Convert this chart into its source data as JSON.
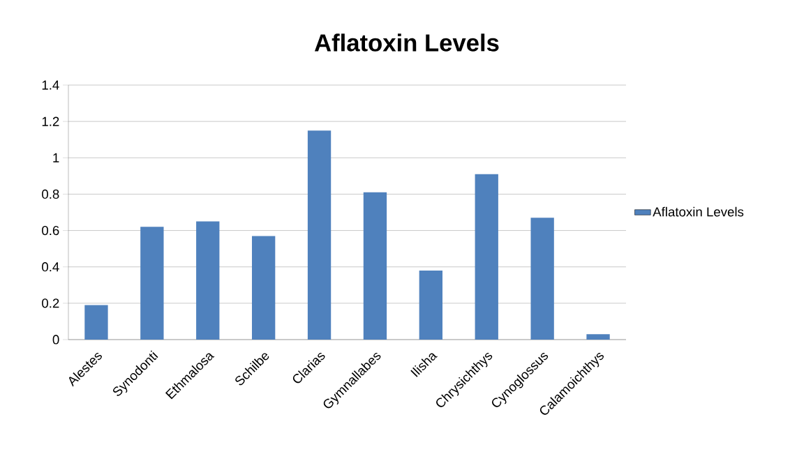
{
  "chart_data": {
    "type": "bar",
    "title": "Aflatoxin Levels",
    "categories": [
      "Alestes",
      "Synodonti",
      "Ethmalosa",
      "Schilbe",
      "Clarias",
      "Gymnallabes",
      "Ilisha",
      "Chrysichthys",
      "Cynoglossus",
      "Calamoichthys"
    ],
    "series": [
      {
        "name": "Aflatoxin Levels",
        "color": "#4f81bd",
        "values": [
          0.19,
          0.62,
          0.65,
          0.57,
          1.15,
          0.81,
          0.38,
          0.91,
          0.67,
          0.03
        ]
      }
    ],
    "ylim": [
      0,
      1.4
    ],
    "yticks": [
      0,
      0.2,
      0.4,
      0.6,
      0.8,
      1,
      1.2,
      1.4
    ],
    "grid": "y",
    "legend": "right"
  }
}
